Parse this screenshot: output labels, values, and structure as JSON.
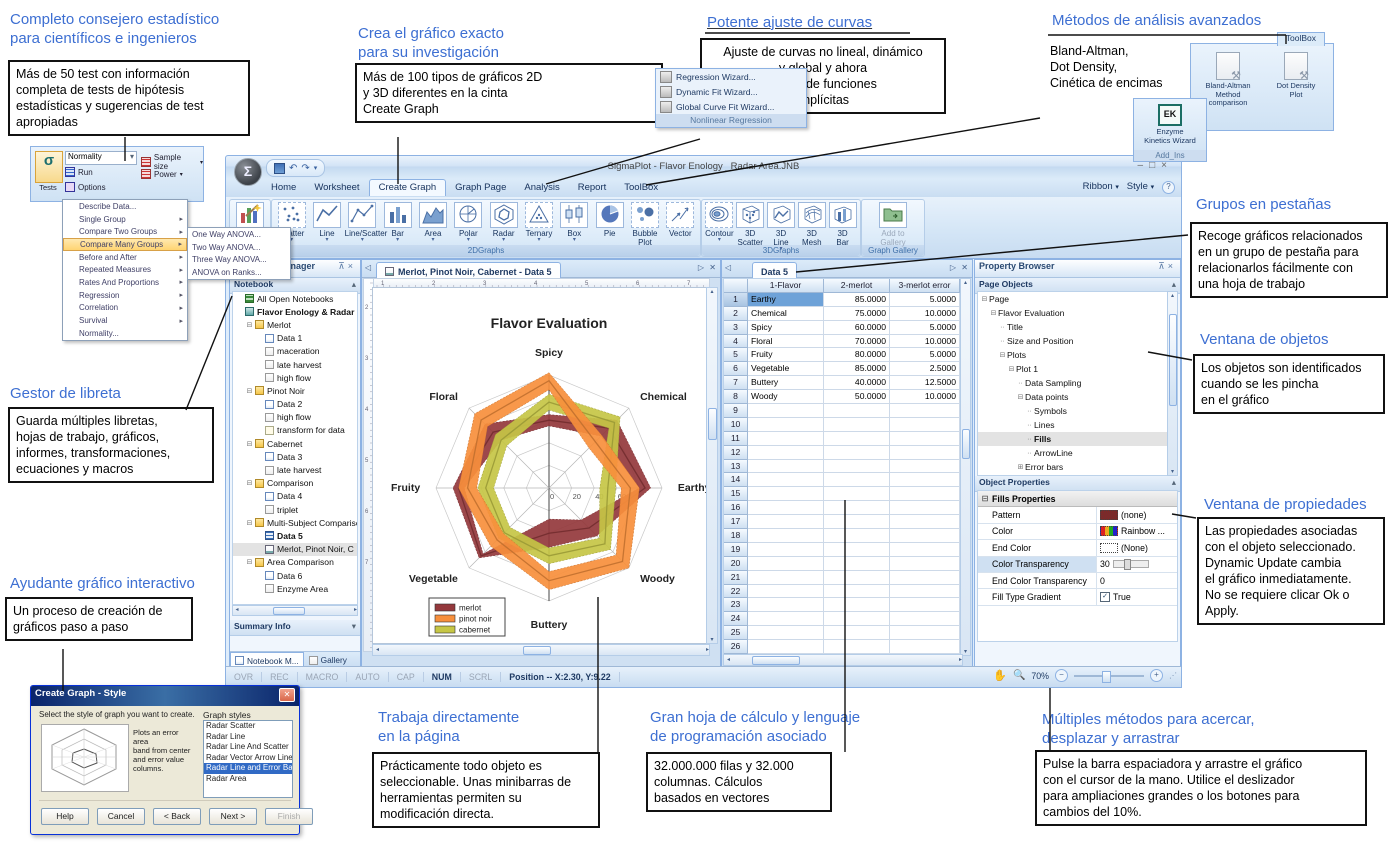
{
  "colors": {
    "accent_blue": "#3d6fd2",
    "ribbon_blue": "#dcebf9",
    "merlot": "#94383c",
    "pinot": "#f78f3c",
    "cabernet": "#c6c645",
    "sel_orange": "#ffd472"
  },
  "callouts": {
    "stat_advisor": {
      "heading": "Completo consejero estadístico\npara científicos e ingenieros",
      "body": "Más de 50 test con información\ncompleta de tests de hipótesis\nestadísticas y sugerencias de test\napropiadas"
    },
    "exact_graph": {
      "heading": "Crea el gráfico exacto\npara su investigación",
      "body": "Más de 100 tipos de gráficos 2D\ny 3D diferentes en la cinta\nCreate Graph"
    },
    "curve_fit": {
      "heading": "Potente ajuste de curvas",
      "body": "Ajuste de curvas no lineal, dinámico\ny global y ahora\najuste de funciones\nimplícitas"
    },
    "advanced": {
      "heading": "Métodos de análisis avanzados",
      "body": "Bland-Altman,\nDot Density,\nCinética de encimas"
    },
    "tab_groups": {
      "heading": "Grupos en pestañas",
      "body": "Recoge gráficos relacionados\nen un grupo de pestaña para\nrelacionarlos fácilmente con\nuna hoja de trabajo"
    },
    "objects_win": {
      "heading": "Ventana de objetos",
      "body": "Los objetos son identificados\ncuando se les pincha\nen el gráfico"
    },
    "props_win": {
      "heading": "Ventana de propiedades",
      "body": "Las propiedades asociadas\ncon el objeto seleccionado.\nDynamic Update cambia\nel gráfico inmediatamente.\nNo se requiere clicar Ok o\nApply."
    },
    "notebook_mgr": {
      "heading": "Gestor de libreta",
      "body": "Guarda múltiples libretas,\nhojas de trabajo, gráficos,\ninformes, transformaciones,\necuaciones y macros"
    },
    "wizard": {
      "heading": "Ayudante gráfico interactivo",
      "body": "Un proceso de creación de\ngráficos paso a paso"
    },
    "direct_page": {
      "heading": "Trabaja directamente\nen la página",
      "body": "Prácticamente todo objeto es\nseleccionable. Unas minibarras de\nherramientas permiten su\nmodificación directa."
    },
    "big_sheet": {
      "heading": "Gran hoja de cálculo y lenguaje\nde programación asociado",
      "body": "32.000.000 filas y 32.000\ncolumnas. Cálculos\nbasados en vectores"
    },
    "pan_zoom": {
      "heading": "Múltiples métodos para acercar,\ndesplazar y arrastrar",
      "body": "Pulse la barra espaciadora y arrastre el gráfico\ncon el cursor de la mano. Utilice el deslizador\npara ampliaciones grandes o los botones para\ncambios del 10%."
    }
  },
  "tests_popup": {
    "button_label": "Tests",
    "sigma": "σ",
    "normality": "Normality",
    "run": "Run",
    "options": "Options",
    "sample_size": "Sample size",
    "power": "Power",
    "menu": [
      "Describe Data...",
      "Single Group",
      "Compare Two Groups",
      "Compare Many Groups",
      "Before and After",
      "Repeated Measures",
      "Rates And Proportions",
      "Regression",
      "Correlation",
      "Survival",
      "Normality..."
    ],
    "menu_has_submenu": [
      false,
      true,
      true,
      true,
      true,
      true,
      true,
      true,
      true,
      true,
      false
    ],
    "highlighted": "Compare Many Groups",
    "submenu": [
      "One Way ANOVA...",
      "Two Way ANOVA...",
      "Three Way ANOVA...",
      "ANOVA on Ranks..."
    ]
  },
  "curve_popup": {
    "items": [
      "Regression Wizard...",
      "Dynamic Fit Wizard...",
      "Global Curve Fit Wizard..."
    ],
    "footer": "Nonlinear Regression"
  },
  "toolbox_popup": {
    "tab": "ToolBox",
    "items": [
      "Bland-Altman\nMethod comparison",
      "Dot Density\nPlot"
    ],
    "ek_label": "EK",
    "ek_name": "Enzyme\nKinetics Wizard",
    "ek_footer": "Add_Ins"
  },
  "app": {
    "title": "SigmaPlot - Flavor Enology _Radar Area.JNB",
    "window_controls": [
      "–",
      "□",
      "×"
    ],
    "tabs": [
      "Home",
      "Worksheet",
      "Create Graph",
      "Graph Page",
      "Analysis",
      "Report",
      "ToolBox"
    ],
    "active_tab": "Create Graph",
    "tabrow_right": {
      "ribbon": "Ribbon",
      "style": "Style",
      "help": "?"
    },
    "ribbon": {
      "groups": [
        {
          "label": "Wizard",
          "items": [
            {
              "label": "Graph\nWizard...",
              "icon": "graph-wizard",
              "dd": false
            }
          ]
        },
        {
          "label": "2DGraphs",
          "items": [
            {
              "label": "Scatter",
              "icon": "scatter",
              "dd": true
            },
            {
              "label": "Line",
              "icon": "line",
              "dd": true
            },
            {
              "label": "Line/Scatter",
              "icon": "line-scatter",
              "dd": true
            },
            {
              "label": "Bar",
              "icon": "bar",
              "dd": true
            },
            {
              "label": "Area",
              "icon": "area",
              "dd": true
            },
            {
              "label": "Polar",
              "icon": "polar",
              "dd": true
            },
            {
              "label": "Radar",
              "icon": "radar",
              "dd": true
            },
            {
              "label": "Ternary",
              "icon": "ternary",
              "dd": true
            },
            {
              "label": "Box",
              "icon": "box",
              "dd": true
            },
            {
              "label": "Pie",
              "icon": "pie",
              "dd": false
            },
            {
              "label": "Bubble\nPlot",
              "icon": "bubble",
              "dd": false
            },
            {
              "label": "Vector",
              "icon": "vector",
              "dd": false
            }
          ]
        },
        {
          "label": "3DGraphs",
          "items": [
            {
              "label": "Contour",
              "icon": "contour",
              "dd": true
            },
            {
              "label": "3D\nScatter",
              "icon": "c3d-scatter",
              "dd": false
            },
            {
              "label": "3D\nLine",
              "icon": "c3d-line",
              "dd": true
            },
            {
              "label": "3D\nMesh",
              "icon": "c3d-mesh",
              "dd": false
            },
            {
              "label": "3D\nBar",
              "icon": "c3d-bar",
              "dd": false
            }
          ]
        },
        {
          "label": "Graph Gallery",
          "items": [
            {
              "label": "Add to\nGallery",
              "icon": "gallery",
              "dd": false,
              "disabled": true
            }
          ]
        }
      ]
    },
    "notebook_panel": {
      "title": "Notebook Manager",
      "section": "Notebook",
      "summary": "Summary Info",
      "bottom_tabs": [
        "Notebook M...",
        "Gallery"
      ],
      "tree": [
        {
          "label": "All Open Notebooks",
          "icon": "notebooks-grid",
          "level": 0
        },
        {
          "label": "Flavor Enology & Radar",
          "icon": "notebook",
          "level": 0,
          "bold": true
        },
        {
          "label": "Merlot",
          "icon": "folder",
          "level": 1,
          "exp": "-"
        },
        {
          "label": "Data 1",
          "icon": "worksheet",
          "level": 2
        },
        {
          "label": "maceration",
          "icon": "report",
          "level": 2
        },
        {
          "label": "late harvest",
          "icon": "report",
          "level": 2
        },
        {
          "label": "high flow",
          "icon": "report",
          "level": 2
        },
        {
          "label": "Pinot Noir",
          "icon": "folder",
          "level": 1,
          "exp": "-"
        },
        {
          "label": "Data 2",
          "icon": "worksheet",
          "level": 2
        },
        {
          "label": "high flow",
          "icon": "report",
          "level": 2
        },
        {
          "label": "transform for data",
          "icon": "transform",
          "level": 2
        },
        {
          "label": "Cabernet",
          "icon": "folder",
          "level": 1,
          "exp": "-"
        },
        {
          "label": "Data 3",
          "icon": "worksheet",
          "level": 2
        },
        {
          "label": "late harvest",
          "icon": "report",
          "level": 2
        },
        {
          "label": "Comparison",
          "icon": "folder",
          "level": 1,
          "exp": "-"
        },
        {
          "label": "Data 4",
          "icon": "worksheet",
          "level": 2
        },
        {
          "label": "triplet",
          "icon": "report",
          "level": 2
        },
        {
          "label": "Multi-Subject Comparison",
          "icon": "folder",
          "level": 1,
          "exp": "-"
        },
        {
          "label": "Data 5",
          "icon": "worksheet-active",
          "level": 2,
          "bold": true
        },
        {
          "label": "Merlot, Pinot Noir, C",
          "icon": "graph-page",
          "level": 2,
          "selected": true
        },
        {
          "label": "Area Comparison",
          "icon": "folder",
          "level": 1,
          "exp": "-"
        },
        {
          "label": "Data 6",
          "icon": "worksheet",
          "level": 2
        },
        {
          "label": "Enzyme Area",
          "icon": "report",
          "level": 2
        }
      ]
    },
    "graph_panel": {
      "tab": "Merlot, Pinot Noir, Cabernet - Data 5",
      "ruler_numbers_top": [
        "1",
        "2",
        "3",
        "4",
        "5",
        "6",
        "7"
      ],
      "ruler_numbers_left": [
        "2",
        "3",
        "4",
        "5",
        "6",
        "7"
      ]
    },
    "data_panel": {
      "tab": "Data 5",
      "columns": [
        "1-Flavor",
        "2-merlot",
        "3-merlot error"
      ],
      "rows": [
        {
          "flavor": "Earthy",
          "merlot": "85.0000",
          "error": "5.0000"
        },
        {
          "flavor": "Chemical",
          "merlot": "75.0000",
          "error": "10.0000"
        },
        {
          "flavor": "Spicy",
          "merlot": "60.0000",
          "error": "5.0000"
        },
        {
          "flavor": "Floral",
          "merlot": "70.0000",
          "error": "10.0000"
        },
        {
          "flavor": "Fruity",
          "merlot": "80.0000",
          "error": "5.0000"
        },
        {
          "flavor": "Vegetable",
          "merlot": "85.0000",
          "error": "2.5000"
        },
        {
          "flavor": "Buttery",
          "merlot": "40.0000",
          "error": "12.5000"
        },
        {
          "flavor": "Woody",
          "merlot": "50.0000",
          "error": "10.0000"
        }
      ],
      "visible_rows": 26,
      "selected_cell": "Earthy"
    },
    "property_panel": {
      "title": "Property Browser",
      "section1": "Page Objects",
      "section2": "Object Properties",
      "tree": [
        {
          "label": "Page",
          "level": 0,
          "exp": "-"
        },
        {
          "label": "Flavor Evaluation",
          "level": 1,
          "exp": "-"
        },
        {
          "label": "Title",
          "level": 2
        },
        {
          "label": "Size and Position",
          "level": 2
        },
        {
          "label": "Plots",
          "level": 2,
          "exp": "-"
        },
        {
          "label": "Plot 1",
          "level": 3,
          "exp": "-"
        },
        {
          "label": "Data Sampling",
          "level": 4
        },
        {
          "label": "Data points",
          "level": 4,
          "exp": "-"
        },
        {
          "label": "Symbols",
          "level": 5
        },
        {
          "label": "Lines",
          "level": 5
        },
        {
          "label": "Fills",
          "level": 5,
          "selected": true
        },
        {
          "label": "ArrowLine",
          "level": 5
        },
        {
          "label": "Error bars",
          "level": 4,
          "exp": "+"
        }
      ],
      "props_group": "Fills Properties",
      "props": [
        {
          "label": "Pattern",
          "value": "(none)",
          "swatch": "#7b2b2b"
        },
        {
          "label": "Color",
          "value": "Rainbow ...",
          "swatch": "rainbow"
        },
        {
          "label": "End Color",
          "value": "(None)",
          "swatch": "#ffffff"
        },
        {
          "label": "Color Transparency",
          "value": "30",
          "control": "slider",
          "selected": true
        },
        {
          "label": "End Color Transparency",
          "value": "0"
        },
        {
          "label": "Fill Type Gradient",
          "value": "True",
          "control": "checkbox"
        }
      ]
    },
    "statusbar": {
      "segments": [
        "OVR",
        "REC",
        "MACRO",
        "AUTO",
        "CAP",
        "NUM",
        "SCRL"
      ],
      "active": "NUM",
      "position": "Position -- X:2.30, Y:9.22",
      "zoom": "70%"
    }
  },
  "chart_data": {
    "type": "radar",
    "title": "Flavor Evaluation",
    "categories": [
      "Spicy",
      "Chemical",
      "Earthy",
      "Woody",
      "Buttery",
      "Vegetable",
      "Fruity",
      "Floral"
    ],
    "rmax": 100,
    "tick_labels": [
      "0",
      "20",
      "40",
      "60"
    ],
    "tick_values": [
      0,
      20,
      40,
      60
    ],
    "grid_rings": [
      20,
      40,
      60,
      80,
      100
    ],
    "series": [
      {
        "name": "merlot",
        "color": "#94383c",
        "values": [
          60,
          75,
          85,
          50,
          40,
          85,
          80,
          70
        ],
        "errors": [
          5,
          10,
          5,
          10,
          12.5,
          2.5,
          5,
          10
        ]
      },
      {
        "name": "pinot noir",
        "color": "#f78f3c",
        "values": [
          95,
          58,
          72,
          92,
          82,
          65,
          72,
          85
        ],
        "errors": [
          8,
          8,
          8,
          8,
          8,
          8,
          8,
          8
        ]
      },
      {
        "name": "cabernet",
        "color": "#c6c645",
        "values": [
          76,
          82,
          52,
          70,
          60,
          56,
          56,
          60
        ],
        "errors": [
          7,
          7,
          7,
          7,
          7,
          7,
          7,
          7
        ]
      }
    ],
    "legend": [
      "merlot",
      "pinot noir",
      "cabernet"
    ],
    "legend_position": "bottom-left"
  },
  "style_dialog": {
    "title": "Create Graph - Style",
    "prompt": "Select the style of graph you want to create.",
    "desc": "Plots an error area\nband from center\nand error value\ncolumns.",
    "styles_label": "Graph styles",
    "styles": [
      "Radar Scatter",
      "Radar Line",
      "Radar Line And Scatter",
      "Radar Vector Arrow Lines",
      "Radar Line and Error Band",
      "Radar Area"
    ],
    "selected_style": "Radar Line and Error Band",
    "buttons": [
      "Help",
      "Cancel",
      "< Back",
      "Next >",
      "Finish"
    ],
    "disabled_button": "Finish"
  }
}
